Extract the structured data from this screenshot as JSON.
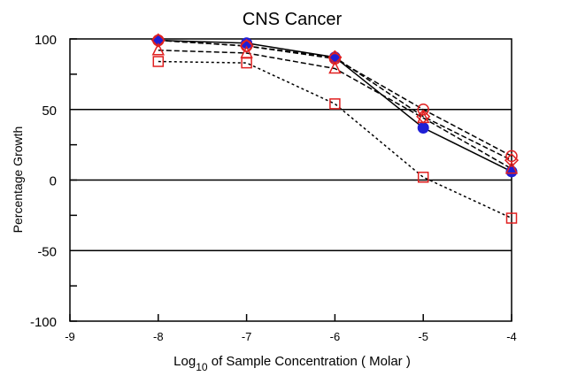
{
  "chart_data": {
    "type": "line",
    "title": "CNS Cancer",
    "ylabel": "Percentage Growth",
    "xlabel_prefix": "Log",
    "xlabel_sub": "10",
    "xlabel_rest": " of Sample Concentration ( Molar )",
    "xlim": [
      -9,
      -4
    ],
    "ylim": [
      -100,
      100
    ],
    "x_ticks": [
      -9,
      -8,
      -7,
      -6,
      -5,
      -4
    ],
    "y_tick_labels": [
      100,
      50,
      0,
      -50,
      -100
    ],
    "y_minor_ticks": [
      75,
      25,
      -25,
      -75
    ],
    "h_gridlines": [
      50,
      0,
      -50
    ],
    "series": [
      {
        "marker": "filled-circle",
        "color": "#1f1fd6",
        "line": "solid",
        "x": [
          -8,
          -7,
          -6,
          -5,
          -4
        ],
        "y": [
          99,
          97,
          87,
          37,
          6
        ]
      },
      {
        "marker": "circle",
        "color": "#e02020",
        "line": "dashed",
        "x": [
          -8,
          -7,
          -6,
          -5,
          -4
        ],
        "y": [
          99,
          95,
          86,
          50,
          17
        ]
      },
      {
        "marker": "diamond",
        "color": "#e02020",
        "line": "dashed",
        "x": [
          -8,
          -7,
          -6,
          -5,
          -4
        ],
        "y": [
          99,
          95,
          87,
          45,
          14
        ]
      },
      {
        "marker": "triangle",
        "color": "#e02020",
        "line": "dashed",
        "x": [
          -8,
          -7,
          -6,
          -5,
          -4
        ],
        "y": [
          92,
          90,
          79,
          44,
          8
        ]
      },
      {
        "marker": "square",
        "color": "#e02020",
        "line": "dotted",
        "x": [
          -8,
          -7,
          -6,
          -5,
          -4
        ],
        "y": [
          84,
          83,
          54,
          2,
          -27
        ]
      }
    ]
  }
}
